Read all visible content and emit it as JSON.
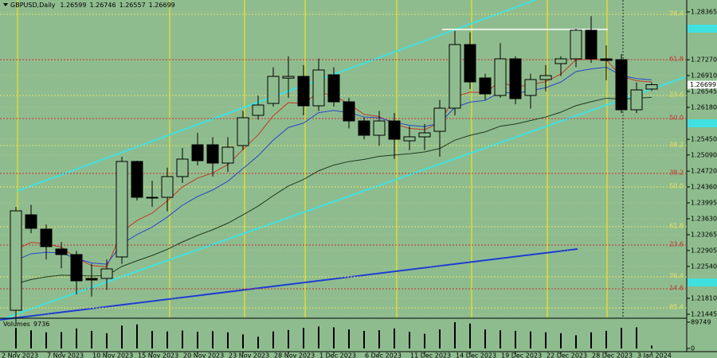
{
  "chart_data": {
    "type": "candlestick",
    "title": "GBPUSD,Daily",
    "categories": [
      "2 Nov 2023",
      null,
      null,
      "7 Nov 2023",
      null,
      null,
      "10 Nov 2023",
      null,
      null,
      "15 Nov 2023",
      null,
      null,
      "20 Nov 2023",
      null,
      null,
      "23 Nov 2023",
      null,
      null,
      "28 Nov 2023",
      null,
      null,
      "1 Dec 2023",
      null,
      null,
      "6 Dec 2023",
      null,
      null,
      "11 Dec 2023",
      null,
      null,
      "14 Dec 2023",
      null,
      null,
      "19 Dec 2023",
      null,
      null,
      "22 Dec 2023",
      null,
      null,
      "28 Dec 2023",
      null,
      null,
      "3 Jan 2024"
    ],
    "open": [
      1.21536,
      1.23721,
      1.23394,
      1.22939,
      1.22811,
      1.22265,
      1.22265,
      1.22757,
      1.24942,
      1.24122,
      1.24122,
      1.24596,
      1.25324,
      1.25324,
      1.24905,
      1.25306,
      1.25998,
      1.26271,
      1.2685,
      1.2689,
      1.26216,
      1.26926,
      1.26307,
      1.2587,
      1.25542,
      1.2587,
      1.25415,
      1.25506,
      1.25633,
      1.26162,
      1.27618,
      1.26854,
      1.26453,
      1.27291,
      1.26453,
      1.26817,
      1.27182,
      1.27291,
      1.27946,
      1.27291,
      1.27272,
      1.26125,
      1.26599
    ],
    "high": [
      1.239,
      1.2395,
      1.235,
      1.231,
      1.229,
      1.226,
      1.227,
      1.2505,
      1.2496,
      1.245,
      1.248,
      1.2525,
      1.256,
      1.255,
      1.255,
      1.261,
      1.2645,
      1.271,
      1.2735,
      1.2715,
      1.273,
      1.271,
      1.264,
      1.2595,
      1.261,
      1.2605,
      1.2575,
      1.258,
      1.2635,
      1.2793,
      1.279,
      1.2695,
      1.2765,
      1.2735,
      1.2695,
      1.2715,
      1.2735,
      1.2798,
      1.2827,
      1.276,
      1.274,
      1.2675,
      1.26746
    ],
    "low": [
      1.212,
      1.233,
      1.227,
      1.225,
      1.219,
      1.2185,
      1.22,
      1.226,
      1.2405,
      1.239,
      1.238,
      1.2445,
      1.2485,
      1.246,
      1.247,
      1.252,
      1.259,
      1.262,
      1.264,
      1.26,
      1.261,
      1.262,
      1.257,
      1.2545,
      1.253,
      1.25,
      1.252,
      1.252,
      1.2505,
      1.26,
      1.266,
      1.2635,
      1.264,
      1.2625,
      1.2615,
      1.2655,
      1.269,
      1.271,
      1.272,
      1.268,
      1.2605,
      1.2605,
      1.26557
    ],
    "close": [
      1.23812,
      1.23412,
      1.22993,
      1.22811,
      1.2221,
      1.22229,
      1.22483,
      1.24942,
      1.24122,
      1.24122,
      1.24596,
      1.24996,
      1.2496,
      1.24905,
      1.25269,
      1.25943,
      1.26234,
      1.2689,
      1.2689,
      1.26216,
      1.27036,
      1.26307,
      1.2587,
      1.25542,
      1.2587,
      1.25451,
      1.25506,
      1.25597,
      1.26162,
      1.27618,
      1.26763,
      1.26489,
      1.27291,
      1.2638,
      1.26817,
      1.26908,
      1.27291,
      1.27946,
      1.27291,
      1.27255,
      1.26125,
      1.2658,
      1.26699
    ],
    "up_color": "#8fbc8f",
    "down_color": "#000000",
    "ylim": [
      1.21354,
      1.28638
    ],
    "yticks": [
      1.28365,
      {
        "value": 1.2727,
        "label": "1.27270"
      },
      {
        "value": 1.2691,
        "label": "1.26910"
      },
      1.26545,
      {
        "value": 1.2618,
        "label": "1.26180"
      },
      {
        "value": 1.2545,
        "label": "1.25450"
      },
      {
        "value": 1.2509,
        "label": "1.25090"
      },
      {
        "value": 1.2472,
        "label": "1.24720"
      },
      {
        "value": 1.2436,
        "label": "1.24360"
      },
      1.23995,
      {
        "value": 1.2363,
        "label": "1.23630"
      },
      1.23265,
      1.22905,
      {
        "value": 1.2254,
        "label": "1.22540"
      },
      {
        "value": 1.2181,
        "label": "1.21810"
      },
      1.21445
    ],
    "grid": true,
    "moving_averages": [
      {
        "color": "#c0392b",
        "values": [
          1.2293,
          1.2309,
          1.2306,
          1.2298,
          1.2273,
          1.2256,
          1.2253,
          1.2333,
          1.2359,
          1.2376,
          1.2404,
          1.2436,
          1.2456,
          1.2468,
          1.2487,
          1.2522,
          1.2555,
          1.2599,
          1.2629,
          1.2627,
          1.2652,
          1.2645,
          1.2626,
          1.2602,
          1.2597,
          1.258,
          1.257,
          1.2567,
          1.2583,
          1.2642,
          1.2653,
          1.2652,
          1.2677,
          1.2664,
          1.267,
          1.2677,
          1.2694,
          1.2727,
          1.2728,
          1.2727,
          1.2689,
          1.2679,
          1.2676
        ]
      },
      {
        "color": "#2846c8",
        "values": [
          1.2268,
          1.2283,
          1.2286,
          1.2285,
          1.2272,
          1.2262,
          1.2259,
          1.2306,
          1.2327,
          1.2344,
          1.2367,
          1.2394,
          1.2414,
          1.2429,
          1.2449,
          1.2478,
          1.2507,
          1.2543,
          1.2572,
          1.2582,
          1.2606,
          1.2611,
          1.2606,
          1.2596,
          1.2594,
          1.2584,
          1.2577,
          1.2574,
          1.2582,
          1.2618,
          1.263,
          1.2634,
          1.2653,
          1.265,
          1.2656,
          1.2663,
          1.2676,
          1.27,
          1.2706,
          1.271,
          1.2691,
          1.2684,
          1.2681
        ]
      },
      {
        "color": "#1f3a1f",
        "values": [
          1.2214,
          1.2224,
          1.223,
          1.2234,
          1.2233,
          1.2232,
          1.2233,
          1.2254,
          1.2267,
          1.2279,
          1.2293,
          1.231,
          1.2325,
          1.2338,
          1.2353,
          1.2372,
          1.2392,
          1.2416,
          1.2438,
          1.2453,
          1.2473,
          1.2486,
          1.2494,
          1.2499,
          1.2506,
          1.2509,
          1.2512,
          1.2516,
          1.2524,
          1.2543,
          1.2554,
          1.2562,
          1.2575,
          1.258,
          1.2588,
          1.2596,
          1.2607,
          1.2622,
          1.2631,
          1.2639,
          1.2637,
          1.2639,
          1.2641
        ]
      }
    ],
    "fib_levels": [
      {
        "label": "76.4",
        "value": 1.2831,
        "color": "#e8e060"
      },
      {
        "label": "61.8",
        "value": 1.27272,
        "color": "#c83232"
      },
      {
        "label": "23.6",
        "value": 1.26453,
        "color": "#e8e060"
      },
      {
        "label": "50.0",
        "value": 1.25925,
        "color": "#c83232"
      },
      {
        "label": "38.2",
        "value": 1.25306,
        "color": "#e8e060"
      },
      {
        "label": "38.2",
        "value": 1.24668,
        "color": "#c83232"
      },
      {
        "label": "50.0",
        "value": 1.24359,
        "color": "#e8e060"
      },
      {
        "label": "61.8",
        "value": 1.23448,
        "color": "#e8e060"
      },
      {
        "label": "23.6",
        "value": 1.23029,
        "color": "#c83232"
      },
      {
        "label": "76.4",
        "value": 1.22301,
        "color": "#e8e060"
      },
      {
        "label": "14.6",
        "value": 1.22028,
        "color": "#c83232"
      },
      {
        "label": "85.4",
        "value": 1.21591,
        "color": "#e8e060"
      }
    ],
    "volume": {
      "label": "Volumes",
      "values": [
        70000,
        62000,
        55000,
        56000,
        68000,
        60000,
        52000,
        78000,
        82000,
        60000,
        58000,
        61000,
        57000,
        59000,
        55000,
        48000,
        40000,
        58000,
        63000,
        70000,
        75000,
        72000,
        65000,
        60000,
        62000,
        68000,
        57000,
        50000,
        65000,
        89749,
        85000,
        65000,
        62000,
        60000,
        58000,
        55000,
        52000,
        45000,
        55000,
        60000,
        70000,
        72000,
        9736
      ],
      "ylim": [
        0,
        95000
      ],
      "yticks": [
        0,
        89749
      ],
      "color": "#000000"
    }
  }
}
